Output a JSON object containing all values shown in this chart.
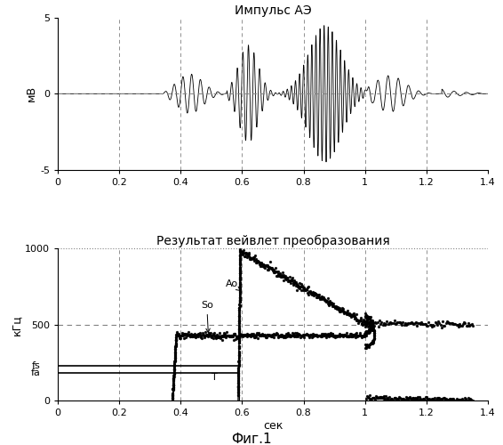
{
  "title1": "Импульс АЭ",
  "title2": "Результат вейвлет преобразования",
  "ylabel1": "мВ",
  "ylabel2": "кГц",
  "xlabel": "сек",
  "ylim1": [
    -5,
    5
  ],
  "ylim2": [
    0,
    1000
  ],
  "xlim": [
    0,
    1.4
  ],
  "yticks1": [
    -5,
    0,
    5
  ],
  "yticks2": [
    0,
    500,
    1000
  ],
  "xticks": [
    0,
    0.2,
    0.4,
    0.6,
    0.8,
    1.0,
    1.2,
    1.4
  ],
  "fs_level": 230,
  "fa_level": 180,
  "fig_label": "Фиг.1",
  "line_color": "#000000",
  "bg_color": "#ffffff"
}
